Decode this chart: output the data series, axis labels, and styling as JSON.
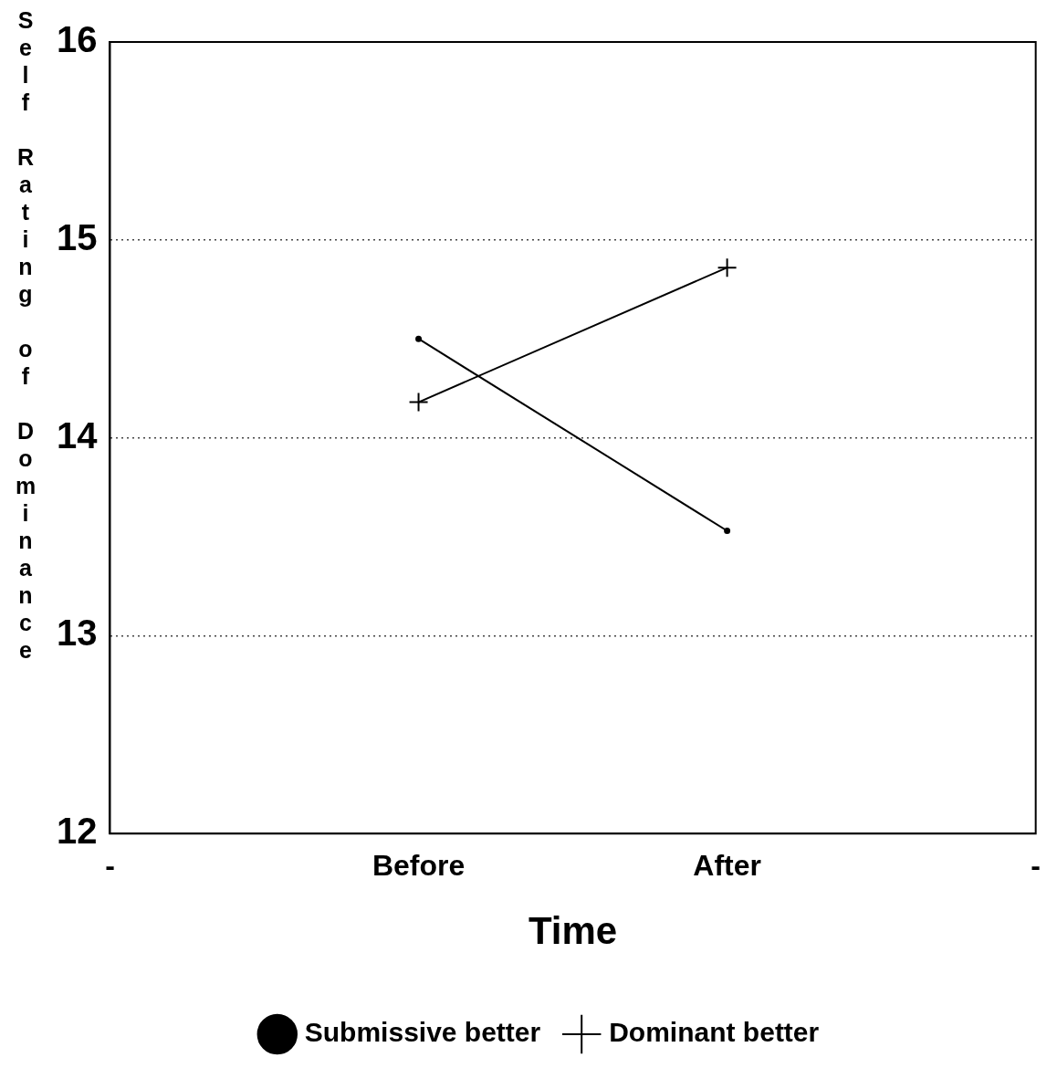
{
  "chart_data": {
    "type": "line",
    "xlabel": "Time",
    "ylabel": "Self Rating of Dominance",
    "categories": [
      "-",
      "Before",
      "After",
      "-"
    ],
    "ylim": [
      12,
      16
    ],
    "yticks": [
      12,
      13,
      14,
      15,
      16
    ],
    "grid": "y",
    "legend": "bottom",
    "series": [
      {
        "name": "Submissive better",
        "color": "#000000",
        "marker": "circle",
        "values": [
          null,
          14.5,
          13.53,
          null
        ]
      },
      {
        "name": "Dominant better",
        "color": "#000000",
        "marker": "cross",
        "values": [
          null,
          14.18,
          14.86,
          null
        ]
      }
    ]
  }
}
